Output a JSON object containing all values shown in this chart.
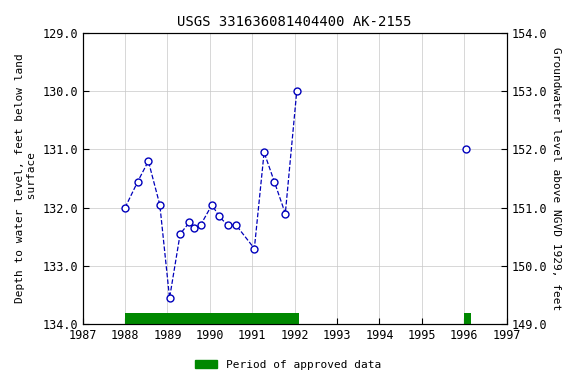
{
  "title": "USGS 331636081404400 AK-2155",
  "xlim": [
    1987,
    1997
  ],
  "ylim_left": [
    134.0,
    129.0
  ],
  "ylim_right": [
    149.0,
    154.0
  ],
  "xticks": [
    1987,
    1988,
    1989,
    1990,
    1991,
    1992,
    1993,
    1994,
    1995,
    1996,
    1997
  ],
  "yticks_left": [
    129.0,
    130.0,
    131.0,
    132.0,
    133.0,
    134.0
  ],
  "yticks_right": [
    149.0,
    150.0,
    151.0,
    152.0,
    153.0,
    154.0
  ],
  "ylabel_left": "Depth to water level, feet below land\n surface",
  "ylabel_right": "Groundwater level above NGVD 1929, feet",
  "segments": [
    {
      "x": [
        1988.0,
        1988.3,
        1988.55,
        1988.82,
        1989.05,
        1989.3,
        1989.52,
        1989.63,
        1989.78,
        1990.05,
        1990.22,
        1990.42,
        1990.62,
        1991.05,
        1991.28,
        1991.52,
        1991.78,
        1992.05
      ],
      "y": [
        132.0,
        131.55,
        131.2,
        131.95,
        133.55,
        132.45,
        132.25,
        132.35,
        132.3,
        131.95,
        132.15,
        132.3,
        132.3,
        132.7,
        131.05,
        131.55,
        132.1,
        130.0
      ]
    },
    {
      "x": [
        1996.05
      ],
      "y": [
        131.0
      ]
    }
  ],
  "line_color": "#0000BB",
  "marker_color": "#0000BB",
  "marker_facecolor": "white",
  "approved_bars": [
    {
      "x_start": 1988.0,
      "x_end": 1992.1
    },
    {
      "x_start": 1996.0,
      "x_end": 1996.15
    }
  ],
  "approved_bar_color": "#008800",
  "legend_label": "Period of approved data",
  "background_color": "#ffffff",
  "grid_color": "#c8c8c8",
  "title_fontsize": 10,
  "label_fontsize": 8,
  "tick_fontsize": 8.5
}
